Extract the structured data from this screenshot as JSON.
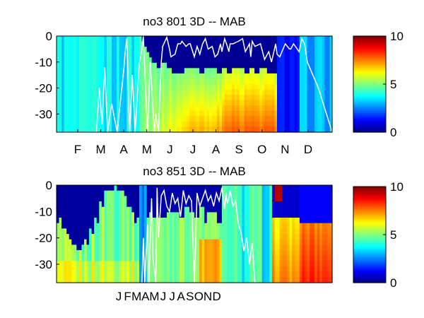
{
  "chart_data": [
    {
      "type": "heatmap",
      "title": "no3  801 3D   -- MAB",
      "x_tick_labels": [
        "F",
        "M",
        "A",
        "M",
        "J",
        "J",
        "A",
        "S",
        "O",
        "N",
        "D"
      ],
      "y_ticks": [
        0,
        -10,
        -20,
        -30
      ],
      "ylim": [
        -37,
        0
      ],
      "colorbar": {
        "ticks": [
          0,
          5,
          10
        ],
        "range": [
          0,
          10
        ],
        "colormap": "jet"
      },
      "overlay": {
        "color": "#ffffff",
        "x": [
          0.0,
          0.1,
          0.125,
          0.145,
          0.155,
          0.165,
          0.175,
          0.185,
          0.2,
          0.22,
          0.245,
          0.25,
          0.255,
          0.265,
          0.275,
          0.285,
          0.3,
          0.31,
          0.315,
          0.33,
          0.34,
          0.355,
          0.36,
          0.37,
          0.38,
          0.385,
          0.4,
          0.41,
          0.415,
          0.43,
          0.44,
          0.45,
          0.455,
          0.47,
          0.48,
          0.485,
          0.5,
          0.51,
          0.52,
          0.53,
          0.54,
          0.55,
          0.565,
          0.575,
          0.585,
          0.595,
          0.6,
          0.61,
          0.62,
          0.625,
          0.63,
          0.64,
          0.66,
          0.675,
          0.685,
          0.7,
          0.705,
          0.71,
          0.72,
          0.74,
          0.755,
          0.77,
          0.78,
          0.795,
          0.8,
          0.81,
          0.83,
          0.845,
          0.85,
          0.86,
          0.88,
          0.89,
          0.9,
          0.91,
          0.95,
          1.0
        ],
        "y": [
          -37,
          -37,
          -37,
          -37,
          -20,
          -34,
          -12,
          -37,
          -26,
          -37,
          -12,
          -5,
          -1,
          -37,
          -15,
          -37,
          -11,
          -5,
          0,
          -37,
          -10,
          -37,
          -30,
          -37,
          -10,
          -4,
          -0.5,
          -5,
          -8,
          -7,
          -3,
          -3,
          -2,
          -4,
          -3,
          -3,
          -8,
          -4,
          -7,
          -3,
          -1,
          -5,
          -4,
          -8,
          -7,
          -3,
          -6,
          -1,
          -4,
          -6,
          -3,
          -3,
          -2,
          -1,
          -6,
          -3,
          -8,
          -2,
          -4,
          -3,
          -9,
          -6,
          -10,
          -3,
          -7,
          -8,
          -3,
          -5,
          -5,
          -3,
          -6,
          -1,
          -3,
          -10,
          -20,
          -37
        ]
      }
    },
    {
      "type": "heatmap",
      "title": "no3  851 3D   -- MAB",
      "x_tick_labels": [
        "J",
        "F",
        "M",
        "A",
        "M",
        "J",
        "J",
        "A",
        "S",
        "O",
        "N",
        "D"
      ],
      "y_ticks": [
        0,
        -10,
        -20,
        -30
      ],
      "ylim": [
        -37,
        0
      ],
      "colorbar": {
        "ticks": [
          0,
          5,
          10
        ],
        "range": [
          0,
          10
        ],
        "colormap": "jet"
      },
      "overlay": {
        "color": "#ffffff",
        "x": [
          0.31,
          0.315,
          0.32,
          0.33,
          0.335,
          0.345,
          0.35,
          0.36,
          0.365,
          0.37,
          0.38,
          0.39,
          0.4,
          0.41,
          0.42,
          0.43,
          0.44,
          0.45,
          0.46,
          0.47,
          0.48,
          0.49,
          0.5,
          0.51,
          0.52,
          0.53,
          0.54,
          0.55,
          0.56,
          0.57,
          0.58,
          0.59,
          0.6,
          0.61,
          0.615,
          0.62,
          0.625,
          0.63,
          0.64,
          0.65,
          0.66,
          0.67,
          0.68,
          0.69,
          0.7,
          0.71,
          0.72,
          0.73
        ],
        "y": [
          -37,
          -20,
          -37,
          -15,
          -37,
          -5,
          -28,
          -37,
          -1,
          -20,
          -4,
          -2,
          -8,
          -10,
          -3,
          -7,
          -5,
          -12,
          -2,
          -7,
          -4,
          -6,
          -37,
          -3,
          -8,
          -5,
          -2,
          -6,
          -4,
          -8,
          -3,
          -6,
          -1,
          -9,
          -3,
          -7,
          -5,
          -2,
          -8,
          -6,
          -15,
          -18,
          -25,
          -20,
          -30,
          -22,
          -37,
          -37
        ]
      }
    }
  ]
}
